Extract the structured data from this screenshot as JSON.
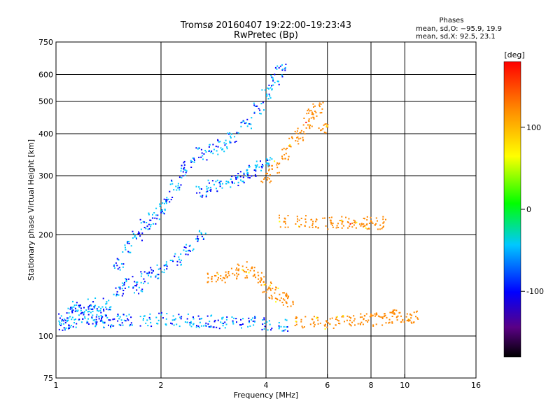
{
  "chart_data": {
    "type": "scatter",
    "title": "Tromsø 20160407 19:22:00–19:23:43",
    "subtitle": "RwPretec (Bp)",
    "xlabel": "Frequency [MHz]",
    "ylabel": "Stationary phase Virtual Height [km]",
    "x_scale": "log",
    "y_scale": "log",
    "xlim": [
      1,
      16
    ],
    "ylim": [
      75,
      750
    ],
    "x_ticks": [
      1,
      2,
      4,
      6,
      8,
      10,
      16
    ],
    "x_tick_labels": [
      "1",
      "2",
      "4",
      "6",
      "8",
      "10",
      "16"
    ],
    "y_ticks": [
      75,
      100,
      200,
      300,
      400,
      500,
      600,
      750
    ],
    "y_tick_labels": [
      "75",
      "100",
      "200",
      "300",
      "400",
      "500",
      "600",
      "750"
    ],
    "grid": true,
    "legend": {
      "title": "Phases",
      "lines": [
        "mean, sd,O: −95.9, 19.9",
        "mean, sd,X:  92.5, 23.1"
      ],
      "placement": "top-right"
    },
    "colorbar": {
      "label": "[deg]",
      "range": [
        -180,
        180
      ],
      "ticks": [
        100,
        0,
        -100
      ],
      "tick_labels": [
        "100",
        "0",
        "-100"
      ],
      "placement": "right"
    },
    "series": [
      {
        "mode": "O",
        "mean_phase": -95.9,
        "traces": [
          {
            "points": [
              [
                1.05,
                112
              ],
              [
                1.1,
                118
              ],
              [
                1.15,
                122
              ],
              [
                1.2,
                120
              ],
              [
                1.25,
                125
              ],
              [
                1.3,
                118
              ],
              [
                1.35,
                115
              ],
              [
                1.4,
                125
              ],
              [
                1.5,
                135
              ],
              [
                1.6,
                145
              ],
              [
                1.7,
                140
              ],
              [
                1.8,
                150
              ],
              [
                1.9,
                155
              ],
              [
                2.0,
                160
              ],
              [
                2.2,
                170
              ],
              [
                2.4,
                180
              ],
              [
                2.6,
                200
              ]
            ]
          },
          {
            "points": [
              [
                1.05,
                108
              ],
              [
                1.1,
                110
              ],
              [
                1.2,
                112
              ],
              [
                1.3,
                110
              ],
              [
                1.4,
                111
              ],
              [
                1.5,
                112
              ],
              [
                1.6,
                112
              ],
              [
                1.8,
                112
              ],
              [
                2.0,
                113
              ],
              [
                2.2,
                112
              ],
              [
                2.4,
                112
              ],
              [
                2.6,
                111
              ],
              [
                2.8,
                111
              ],
              [
                3.0,
                110
              ],
              [
                3.3,
                110
              ],
              [
                3.6,
                110
              ],
              [
                4.0,
                109
              ],
              [
                4.5,
                108
              ]
            ]
          },
          {
            "points": [
              [
                1.5,
                165
              ],
              [
                1.6,
                185
              ],
              [
                1.7,
                200
              ],
              [
                1.8,
                215
              ],
              [
                1.9,
                225
              ],
              [
                2.0,
                240
              ],
              [
                2.1,
                260
              ],
              [
                2.2,
                285
              ],
              [
                2.3,
                310
              ],
              [
                2.4,
                330
              ],
              [
                2.6,
                350
              ],
              [
                2.8,
                360
              ],
              [
                3.0,
                370
              ],
              [
                3.2,
                390
              ],
              [
                3.5,
                430
              ],
              [
                3.8,
                480
              ],
              [
                4.0,
                530
              ],
              [
                4.2,
                580
              ],
              [
                4.4,
                620
              ]
            ]
          },
          {
            "points": [
              [
                2.6,
                270
              ],
              [
                2.8,
                280
              ],
              [
                3.0,
                285
              ],
              [
                3.2,
                290
              ],
              [
                3.4,
                300
              ],
              [
                3.6,
                310
              ],
              [
                3.8,
                320
              ],
              [
                4.0,
                330
              ]
            ]
          }
        ]
      },
      {
        "mode": "X",
        "mean_phase": 92.5,
        "traces": [
          {
            "points": [
              [
                2.8,
                150
              ],
              [
                3.0,
                150
              ],
              [
                3.2,
                155
              ],
              [
                3.4,
                160
              ],
              [
                3.6,
                155
              ],
              [
                3.8,
                150
              ],
              [
                4.0,
                140
              ],
              [
                4.2,
                135
              ],
              [
                4.4,
                130
              ],
              [
                4.6,
                128
              ]
            ]
          },
          {
            "points": [
              [
                4.0,
                300
              ],
              [
                4.2,
                320
              ],
              [
                4.5,
                350
              ],
              [
                4.8,
                380
              ],
              [
                5.0,
                400
              ],
              [
                5.2,
                430
              ],
              [
                5.4,
                460
              ],
              [
                5.6,
                480
              ],
              [
                5.8,
                420
              ]
            ]
          },
          {
            "points": [
              [
                4.5,
                220
              ],
              [
                5.0,
                220
              ],
              [
                5.5,
                218
              ],
              [
                6.0,
                218
              ],
              [
                6.5,
                218
              ],
              [
                7.0,
                218
              ],
              [
                7.5,
                218
              ],
              [
                8.0,
                218
              ],
              [
                8.5,
                218
              ]
            ]
          },
          {
            "points": [
              [
                5.0,
                110
              ],
              [
                5.5,
                110
              ],
              [
                6.0,
                110
              ],
              [
                6.5,
                111
              ],
              [
                7.0,
                111
              ],
              [
                7.5,
                112
              ],
              [
                8.0,
                112
              ],
              [
                8.5,
                113
              ],
              [
                9.0,
                114
              ],
              [
                9.5,
                115
              ],
              [
                10.0,
                115
              ],
              [
                10.5,
                114
              ]
            ]
          }
        ]
      }
    ]
  }
}
